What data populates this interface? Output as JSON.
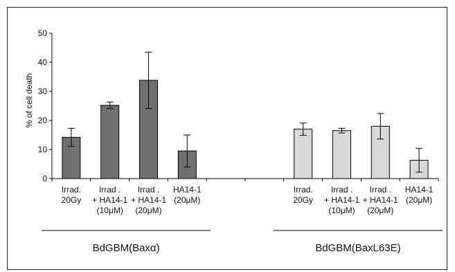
{
  "chart_data": {
    "type": "bar",
    "ylabel": "% of cell death",
    "ylim": [
      0,
      50
    ],
    "yticks": [
      0,
      10,
      20,
      30,
      40,
      50
    ],
    "grid": false,
    "groups": [
      {
        "name": "BdGBM(Baxα)",
        "color": "#707070",
        "bars": [
          {
            "label": [
              "Irrad.",
              "20Gy"
            ],
            "value": 14.2,
            "err": 3.1
          },
          {
            "label": [
              "Irrad .",
              "+ HA14-1",
              "(10μM)"
            ],
            "value": 25.2,
            "err": 1.1
          },
          {
            "label": [
              "Irrad .",
              "+ HA14-1",
              "(20μM)"
            ],
            "value": 33.8,
            "err": 9.7
          },
          {
            "label": [
              "HA14-1",
              "(20μM)"
            ],
            "value": 9.5,
            "err": 5.5
          }
        ]
      },
      {
        "name": "BdGBM(BaxL63E)",
        "color": "#d8d8d8",
        "bars": [
          {
            "label": [
              "Irrad.",
              "20Gy"
            ],
            "value": 17.0,
            "err": 2.1
          },
          {
            "label": [
              "Irrad .",
              "+ HA14-1",
              "(10μM)"
            ],
            "value": 16.5,
            "err": 0.8
          },
          {
            "label": [
              "Irrad .",
              "+ HA14-1",
              "(20μM)"
            ],
            "value": 18.0,
            "err": 4.4
          },
          {
            "label": [
              "HA14-1",
              "(20μM)"
            ],
            "value": 6.3,
            "err": 4.1
          }
        ]
      }
    ]
  }
}
